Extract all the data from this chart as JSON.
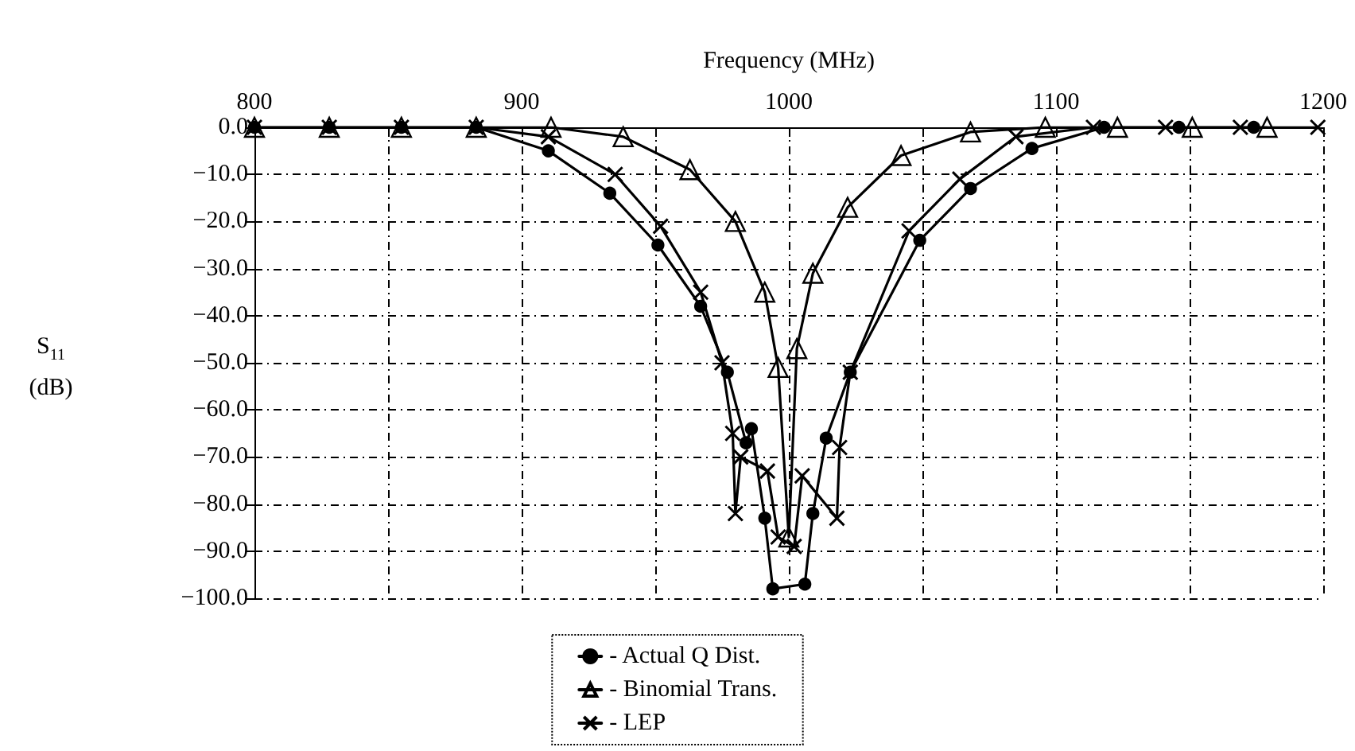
{
  "chart_data": {
    "type": "line",
    "xlabel": "Frequency (MHz)",
    "ylabel": "S$_{11}$ (dB)",
    "xlim": [
      800,
      1200
    ],
    "xticks": [
      800,
      {
        "value": 850,
        "label": null
      },
      900,
      {
        "value": 950,
        "label": null
      },
      1000,
      {
        "value": 1050,
        "label": null
      },
      1100,
      {
        "value": 1150,
        "label": null
      },
      1200
    ],
    "ylim": [
      -100,
      0
    ],
    "yticks": [
      {
        "value": 0,
        "label": "0.0"
      },
      {
        "value": -10,
        "label": "−10.0"
      },
      {
        "value": -20,
        "label": "−20.0"
      },
      {
        "value": -30,
        "label": "−30.0"
      },
      {
        "value": -40,
        "label": "−40.0"
      },
      {
        "value": -50,
        "label": "−50.0"
      },
      {
        "value": -60,
        "label": "−60.0"
      },
      {
        "value": -70,
        "label": "−70.0"
      },
      {
        "value": -80,
        "label": "−80.0"
      },
      {
        "value": -90,
        "label": "−90.0"
      },
      {
        "value": -100,
        "label": "−100.0"
      }
    ],
    "grid": true,
    "legend": "bottom",
    "line_style": "solid",
    "series": [
      {
        "name": "- Actual Q Dist.",
        "color": "#000000",
        "marker": "circle",
        "x": [
          800,
          828,
          855,
          883,
          910,
          933,
          951,
          967,
          977,
          984,
          986,
          991,
          994,
          1006,
          1009,
          1014,
          1023,
          1049,
          1068,
          1091,
          1118,
          1146,
          1174
        ],
        "values": [
          0,
          0,
          0,
          0,
          -5,
          -14,
          -25,
          -38,
          -52,
          -67,
          -64,
          -83,
          -98,
          -97,
          -82,
          -66,
          -52,
          -24,
          -13,
          -4.5,
          0,
          0,
          0
        ]
      },
      {
        "name": "- Binomial Trans.",
        "color": "#000000",
        "marker": "triangle",
        "x": [
          800,
          828,
          855,
          883,
          911,
          938,
          963,
          980,
          991,
          996,
          1000,
          1003,
          1009,
          1022,
          1042,
          1068,
          1096,
          1123,
          1151,
          1179
        ],
        "values": [
          0,
          0,
          0,
          0,
          0,
          -2,
          -9,
          -20,
          -35,
          -51,
          -87,
          -47,
          -31,
          -17,
          -6,
          -1,
          0,
          0,
          0,
          0
        ]
      },
      {
        "name": "- LEP",
        "color": "#000000",
        "marker": "cross",
        "x": [
          800,
          828,
          855,
          883,
          910,
          935,
          952,
          967,
          975,
          979,
          980,
          982,
          992,
          996,
          1002,
          1005,
          1018,
          1019,
          1023,
          1045,
          1064,
          1085,
          1114,
          1141,
          1169,
          1198
        ],
        "values": [
          0,
          0,
          0,
          0,
          -2,
          -10,
          -21,
          -35,
          -50,
          -65,
          -82,
          -70,
          -73,
          -87,
          -89,
          -74,
          -83,
          -68,
          -52,
          -22,
          -11,
          -2,
          0,
          0,
          0,
          0
        ]
      }
    ]
  }
}
